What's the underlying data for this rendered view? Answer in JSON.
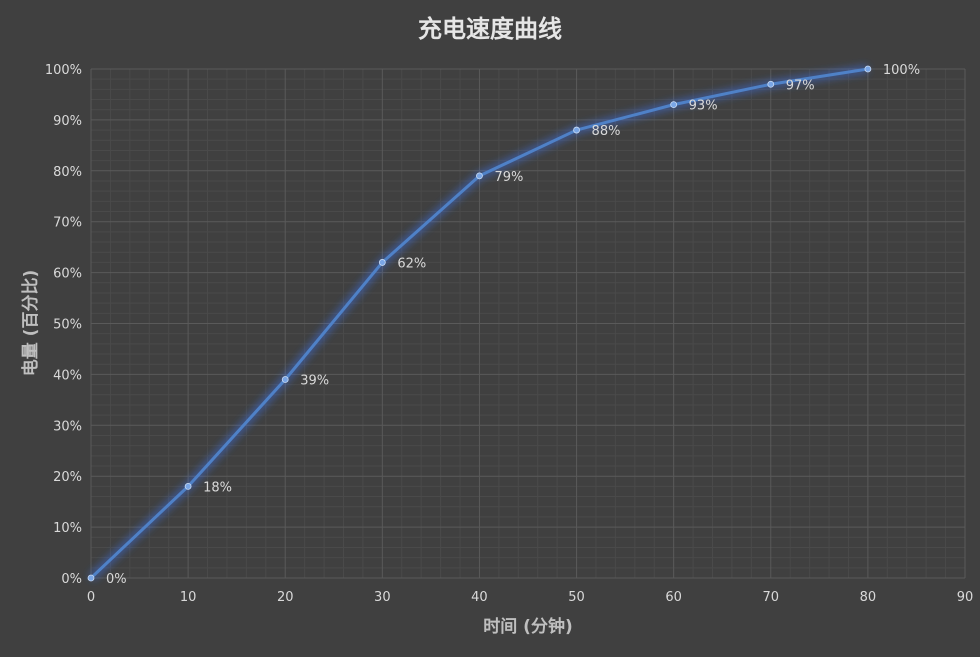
{
  "chart_data": {
    "type": "line",
    "title": "充电速度曲线",
    "xlabel": "时间 (分钟)",
    "ylabel": "电量 (百分比)",
    "xlim": [
      0,
      90
    ],
    "ylim": [
      0,
      100
    ],
    "x_ticks": [
      0,
      10,
      20,
      30,
      40,
      50,
      60,
      70,
      80,
      90
    ],
    "y_ticks": [
      "0%",
      "10%",
      "20%",
      "30%",
      "40%",
      "50%",
      "60%",
      "70%",
      "80%",
      "90%",
      "100%"
    ],
    "grid": true,
    "legend": "none",
    "series": [
      {
        "x": [
          0,
          10,
          20,
          30,
          40,
          50,
          60,
          70,
          80
        ],
        "values": [
          0,
          18,
          39,
          62,
          79,
          88,
          93,
          97,
          100
        ],
        "data_labels": [
          "0%",
          "18%",
          "39%",
          "62%",
          "79%",
          "88%",
          "93%",
          "97%",
          "100%"
        ],
        "color": "#4f81c7"
      }
    ],
    "colors": {
      "background": "#404040",
      "grid_major": "#5a5a5a",
      "grid_minor": "#4a4a4a",
      "line": "#4f81c7",
      "glow": "#3a78ff"
    }
  }
}
